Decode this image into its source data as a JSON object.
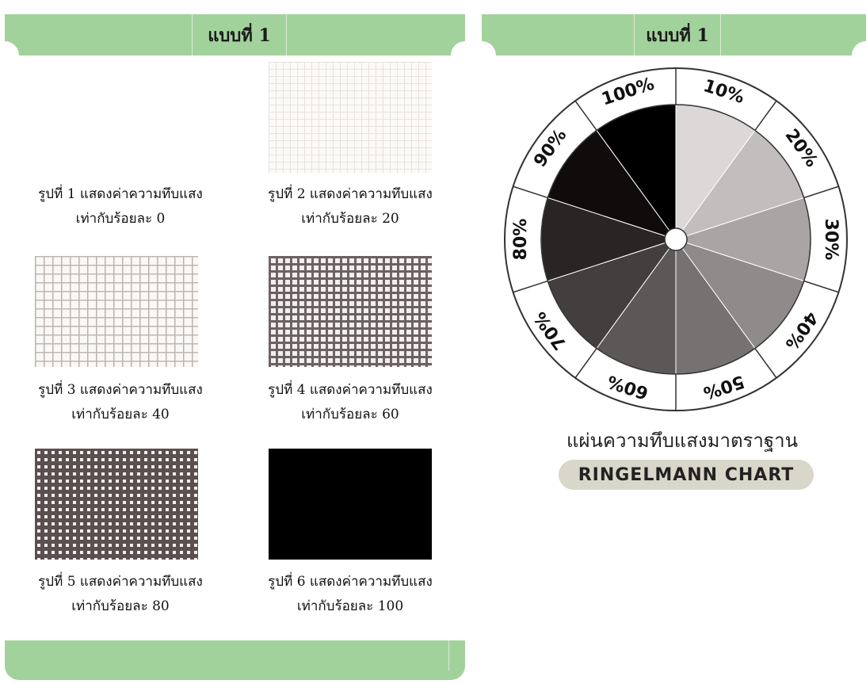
{
  "left_panel": {
    "header_title": "แบบที่ 1",
    "figures": [
      {
        "caption_line1": "รูปที่ 1 แสดงค่าความทึบแสง",
        "caption_line2": "เท่ากับร้อยละ 0",
        "opacity_percent": 0
      },
      {
        "caption_line1": "รูปที่ 2 แสดงค่าความทึบแสง",
        "caption_line2": "เท่ากับร้อยละ 20",
        "opacity_percent": 20
      },
      {
        "caption_line1": "รูปที่ 3 แสดงค่าความทึบแสง",
        "caption_line2": "เท่ากับร้อยละ 40",
        "opacity_percent": 40
      },
      {
        "caption_line1": "รูปที่ 4 แสดงค่าความทึบแสง",
        "caption_line2": "เท่ากับร้อยละ 60",
        "opacity_percent": 60
      },
      {
        "caption_line1": "รูปที่ 5 แสดงค่าความทึบแสง",
        "caption_line2": "เท่ากับร้อยละ 80",
        "opacity_percent": 80
      },
      {
        "caption_line1": "รูปที่ 6 แสดงค่าความทึบแสง",
        "caption_line2": "เท่ากับร้อยละ 100",
        "opacity_percent": 100
      }
    ]
  },
  "right_panel": {
    "header_title": "แบบที่ 1",
    "wheel_labels": [
      "10%",
      "20%",
      "30%",
      "40%",
      "50%",
      "60%",
      "70%",
      "80%",
      "90%",
      "100%"
    ],
    "caption_thai": "แผ่นความทึบแสงมาตราฐาน",
    "caption_english": "RINGELMANN CHART"
  },
  "colors": {
    "banner_green": "#a2d29b",
    "english_caption_pill": "#d9d7c9"
  }
}
